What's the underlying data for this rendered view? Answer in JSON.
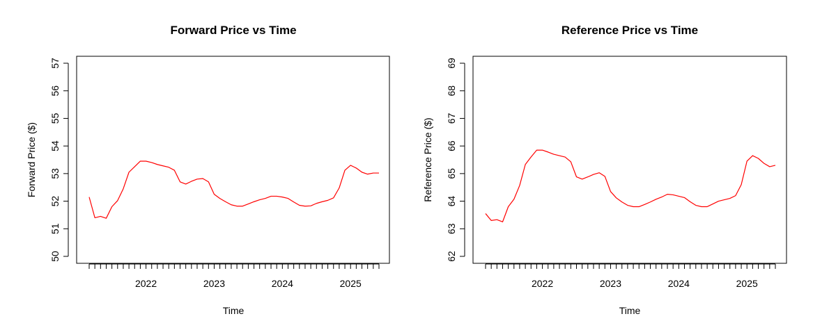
{
  "chart_data": [
    {
      "type": "line",
      "title": "Forward Price vs Time",
      "xlabel": "Time",
      "ylabel": "Forward Price ($)",
      "ylim": [
        50,
        57
      ],
      "yticks": [
        50,
        51,
        52,
        53,
        54,
        55,
        56,
        57
      ],
      "xlim": [
        "2021-03",
        "2025-06"
      ],
      "xtick_labels": [
        "2022",
        "2023",
        "2024",
        "2025"
      ],
      "grid": false,
      "series_color": "#ff0000",
      "x": [
        "2021-03",
        "2021-04",
        "2021-05",
        "2021-06",
        "2021-07",
        "2021-08",
        "2021-09",
        "2021-10",
        "2021-11",
        "2021-12",
        "2022-01",
        "2022-02",
        "2022-03",
        "2022-04",
        "2022-05",
        "2022-06",
        "2022-07",
        "2022-08",
        "2022-09",
        "2022-10",
        "2022-11",
        "2022-12",
        "2023-01",
        "2023-02",
        "2023-03",
        "2023-04",
        "2023-05",
        "2023-06",
        "2023-07",
        "2023-08",
        "2023-09",
        "2023-10",
        "2023-11",
        "2023-12",
        "2024-01",
        "2024-02",
        "2024-03",
        "2024-04",
        "2024-05",
        "2024-06",
        "2024-07",
        "2024-08",
        "2024-09",
        "2024-10",
        "2024-11",
        "2024-12",
        "2025-01",
        "2025-02",
        "2025-03",
        "2025-04",
        "2025-05",
        "2025-06"
      ],
      "values": [
        52.15,
        51.4,
        51.45,
        51.38,
        51.8,
        52.02,
        52.45,
        53.05,
        53.25,
        53.45,
        53.45,
        53.4,
        53.33,
        53.28,
        53.23,
        53.12,
        52.7,
        52.62,
        52.72,
        52.8,
        52.82,
        52.7,
        52.25,
        52.1,
        51.98,
        51.87,
        51.82,
        51.82,
        51.9,
        51.98,
        52.05,
        52.1,
        52.18,
        52.18,
        52.15,
        52.1,
        51.97,
        51.85,
        51.82,
        51.83,
        51.92,
        51.98,
        52.03,
        52.12,
        52.48,
        53.12,
        53.3,
        53.2,
        53.05,
        52.98,
        53.02,
        53.02
      ]
    },
    {
      "type": "line",
      "title": "Reference Price vs Time",
      "xlabel": "Time",
      "ylabel": "Reference Price ($)",
      "ylim": [
        62,
        69
      ],
      "yticks": [
        62,
        63,
        64,
        65,
        66,
        67,
        68,
        69
      ],
      "xlim": [
        "2021-03",
        "2025-06"
      ],
      "xtick_labels": [
        "2022",
        "2023",
        "2024",
        "2025"
      ],
      "grid": false,
      "series_color": "#ff0000",
      "x": [
        "2021-03",
        "2021-04",
        "2021-05",
        "2021-06",
        "2021-07",
        "2021-08",
        "2021-09",
        "2021-10",
        "2021-11",
        "2021-12",
        "2022-01",
        "2022-02",
        "2022-03",
        "2022-04",
        "2022-05",
        "2022-06",
        "2022-07",
        "2022-08",
        "2022-09",
        "2022-10",
        "2022-11",
        "2022-12",
        "2023-01",
        "2023-02",
        "2023-03",
        "2023-04",
        "2023-05",
        "2023-06",
        "2023-07",
        "2023-08",
        "2023-09",
        "2023-10",
        "2023-11",
        "2023-12",
        "2024-01",
        "2024-02",
        "2024-03",
        "2024-04",
        "2024-05",
        "2024-06",
        "2024-07",
        "2024-08",
        "2024-09",
        "2024-10",
        "2024-11",
        "2024-12",
        "2025-01",
        "2025-02",
        "2025-03",
        "2025-04",
        "2025-05",
        "2025-06"
      ],
      "values": [
        63.55,
        63.3,
        63.33,
        63.25,
        63.8,
        64.07,
        64.57,
        65.33,
        65.6,
        65.85,
        65.85,
        65.78,
        65.7,
        65.65,
        65.6,
        65.43,
        64.88,
        64.8,
        64.88,
        64.97,
        65.03,
        64.9,
        64.35,
        64.12,
        63.97,
        63.85,
        63.8,
        63.8,
        63.88,
        63.97,
        64.07,
        64.15,
        64.25,
        64.23,
        64.18,
        64.13,
        63.98,
        63.85,
        63.8,
        63.8,
        63.9,
        64.0,
        64.05,
        64.1,
        64.2,
        64.6,
        65.45,
        65.65,
        65.55,
        65.37,
        65.25,
        65.3
      ]
    }
  ]
}
